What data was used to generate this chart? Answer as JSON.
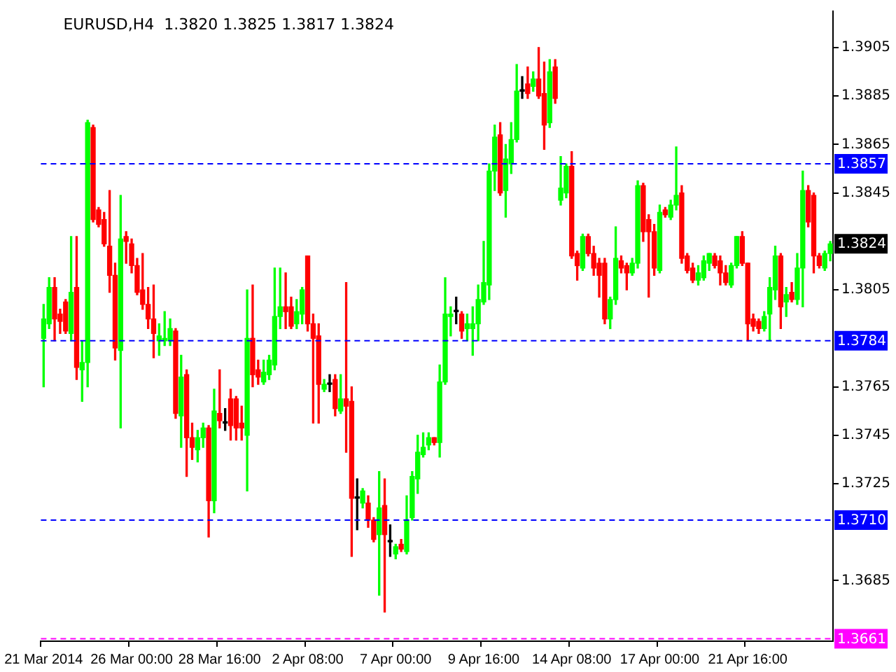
{
  "chart_data": {
    "type": "candlestick",
    "title": "EURUSD,H4  1.3820 1.3825 1.3817 1.3824",
    "categories": [
      "21 Mar 2014",
      null,
      null,
      null,
      null,
      null,
      null,
      null,
      null,
      null,
      null,
      null,
      null,
      null,
      null,
      null,
      "26 Mar 00:00",
      null,
      null,
      null,
      null,
      null,
      null,
      null,
      null,
      null,
      null,
      null,
      null,
      null,
      null,
      null,
      "28 Mar 16:00",
      null,
      null,
      null,
      null,
      null,
      null,
      null,
      null,
      null,
      null,
      null,
      null,
      null,
      null,
      null,
      "2 Apr 08:00",
      null,
      null,
      null,
      null,
      null,
      null,
      null,
      null,
      null,
      null,
      null,
      null,
      null,
      null,
      null,
      "7 Apr 00:00",
      null,
      null,
      null,
      null,
      null,
      null,
      null,
      null,
      null,
      null,
      null,
      null,
      null,
      null,
      null,
      "9 Apr 16:00",
      null,
      null,
      null,
      null,
      null,
      null,
      null,
      null,
      null,
      null,
      null,
      null,
      null,
      null,
      null,
      "14 Apr 08:00",
      null,
      null,
      null,
      null,
      null,
      null,
      null,
      null,
      null,
      null,
      null,
      null,
      null,
      null,
      null,
      "17 Apr 00:00",
      null,
      null,
      null,
      null,
      null,
      null,
      null,
      null,
      null,
      null,
      null,
      null,
      null,
      null,
      null,
      "21 Apr 16:00",
      null,
      null,
      null,
      null,
      null,
      null,
      null,
      null,
      null,
      null,
      null,
      null,
      null,
      null,
      null
    ],
    "ohlc": [
      [
        1.3785,
        1.3799,
        1.3765,
        1.3793
      ],
      [
        1.3791,
        1.381,
        1.3789,
        1.3806
      ],
      [
        1.3806,
        1.381,
        1.3784,
        1.3793
      ],
      [
        1.3795,
        1.3797,
        1.3787,
        1.3792
      ],
      [
        1.38,
        1.3801,
        1.3787,
        1.3788
      ],
      [
        1.3787,
        1.3827,
        1.3784,
        1.3804
      ],
      [
        1.3806,
        1.3827,
        1.3768,
        1.3773
      ],
      [
        1.3772,
        1.3784,
        1.3759,
        1.3775
      ],
      [
        1.3775,
        1.3875,
        1.3765,
        1.3874
      ],
      [
        1.3872,
        1.3873,
        1.3833,
        1.3834
      ],
      [
        1.3838,
        1.3839,
        1.3831,
        1.3832
      ],
      [
        1.3834,
        1.3837,
        1.3823,
        1.3824
      ],
      [
        1.3823,
        1.3846,
        1.3804,
        1.3811
      ],
      [
        1.3811,
        1.3816,
        1.3776,
        1.3781
      ],
      [
        1.378,
        1.3844,
        1.3748,
        1.3826
      ],
      [
        1.3827,
        1.3829,
        1.3816,
        1.3825
      ],
      [
        1.3824,
        1.3826,
        1.3812,
        1.3815
      ],
      [
        1.3815,
        1.3818,
        1.3803,
        1.3804
      ],
      [
        1.3805,
        1.382,
        1.3797,
        1.3799
      ],
      [
        1.3799,
        1.3806,
        1.3789,
        1.3793
      ],
      [
        1.3793,
        1.3807,
        1.3777,
        1.3787
      ],
      [
        1.3784,
        1.3791,
        1.3778,
        1.3786
      ],
      [
        1.3784,
        1.3796,
        1.3782,
        1.3785
      ],
      [
        1.3784,
        1.3793,
        1.3782,
        1.3789
      ],
      [
        1.3788,
        1.3789,
        1.3752,
        1.3754
      ],
      [
        1.3753,
        1.3778,
        1.374,
        1.3769
      ],
      [
        1.377,
        1.3772,
        1.3728,
        1.3744
      ],
      [
        1.3744,
        1.375,
        1.3735,
        1.374
      ],
      [
        1.3739,
        1.3747,
        1.3734,
        1.3744
      ],
      [
        1.3744,
        1.375,
        1.374,
        1.3748
      ],
      [
        1.3748,
        1.3749,
        1.3703,
        1.3718
      ],
      [
        1.3718,
        1.3764,
        1.3713,
        1.3755
      ],
      [
        1.3754,
        1.3772,
        1.3748,
        1.3751
      ],
      [
        1.375,
        1.3756,
        1.3747,
        1.375
      ],
      [
        1.376,
        1.3764,
        1.3743,
        1.3749
      ],
      [
        1.376,
        1.3761,
        1.3743,
        1.3748
      ],
      [
        1.375,
        1.3757,
        1.3743,
        1.3748
      ],
      [
        1.3745,
        1.3805,
        1.3722,
        1.3785
      ],
      [
        1.3785,
        1.3807,
        1.3765,
        1.377
      ],
      [
        1.3772,
        1.3776,
        1.3766,
        1.3769
      ],
      [
        1.3767,
        1.3776,
        1.3766,
        1.3771
      ],
      [
        1.377,
        1.3778,
        1.3768,
        1.3776
      ],
      [
        1.3774,
        1.3814,
        1.3772,
        1.3794
      ],
      [
        1.3794,
        1.3814,
        1.3789,
        1.3798
      ],
      [
        1.3798,
        1.3812,
        1.3789,
        1.3796
      ],
      [
        1.3798,
        1.3802,
        1.3789,
        1.379
      ],
      [
        1.3791,
        1.3801,
        1.3789,
        1.3796
      ],
      [
        1.3795,
        1.3806,
        1.3791,
        1.3805
      ],
      [
        1.3819,
        1.3819,
        1.3788,
        1.3791
      ],
      [
        1.3791,
        1.3795,
        1.375,
        1.3785
      ],
      [
        1.3786,
        1.3791,
        1.375,
        1.3766
      ],
      [
        1.3764,
        1.3768,
        1.3763,
        1.3766
      ],
      [
        1.3766,
        1.377,
        1.3763,
        1.3766
      ],
      [
        1.3768,
        1.377,
        1.3753,
        1.3756
      ],
      [
        1.3755,
        1.377,
        1.3754,
        1.376
      ],
      [
        1.376,
        1.3808,
        1.3738,
        1.3757
      ],
      [
        1.3759,
        1.3765,
        1.3695,
        1.3719
      ],
      [
        1.3719,
        1.3727,
        1.3706,
        1.3719
      ],
      [
        1.3717,
        1.3723,
        1.3715,
        1.3722
      ],
      [
        1.3717,
        1.372,
        1.3707,
        1.371
      ],
      [
        1.371,
        1.3711,
        1.3701,
        1.3702
      ],
      [
        1.3704,
        1.373,
        1.3679,
        1.3715
      ],
      [
        1.3716,
        1.3727,
        1.3672,
        1.3704
      ],
      [
        1.3701,
        1.3708,
        1.3695,
        1.3701
      ],
      [
        1.3696,
        1.37,
        1.3694,
        1.3699
      ],
      [
        1.37,
        1.3702,
        1.3697,
        1.3698
      ],
      [
        1.3697,
        1.372,
        1.3696,
        1.371
      ],
      [
        1.3711,
        1.373,
        1.371,
        1.3728
      ],
      [
        1.3727,
        1.3745,
        1.3721,
        1.3738
      ],
      [
        1.3737,
        1.3746,
        1.3736,
        1.374
      ],
      [
        1.3741,
        1.3746,
        1.3739,
        1.3744
      ],
      [
        1.3744,
        1.3744,
        1.3741,
        1.3742
      ],
      [
        1.3742,
        1.3774,
        1.3736,
        1.3767
      ],
      [
        1.3767,
        1.381,
        1.3766,
        1.3795
      ],
      [
        1.3794,
        1.3798,
        1.3786,
        1.3795
      ],
      [
        1.3796,
        1.3802,
        1.3791,
        1.3796
      ],
      [
        1.3795,
        1.3796,
        1.3785,
        1.3788
      ],
      [
        1.3789,
        1.3795,
        1.3784,
        1.3791
      ],
      [
        1.3789,
        1.3798,
        1.3778,
        1.3791
      ],
      [
        1.3791,
        1.3807,
        1.3784,
        1.3801
      ],
      [
        1.38,
        1.3825,
        1.3799,
        1.3808
      ],
      [
        1.3807,
        1.3857,
        1.3801,
        1.3854
      ],
      [
        1.3854,
        1.3873,
        1.3846,
        1.3868
      ],
      [
        1.3869,
        1.3874,
        1.3844,
        1.3845
      ],
      [
        1.3846,
        1.3865,
        1.3835,
        1.3859
      ],
      [
        1.3857,
        1.3874,
        1.3853,
        1.3867
      ],
      [
        1.3867,
        1.3898,
        1.3866,
        1.3887
      ],
      [
        1.3887,
        1.3893,
        1.3884,
        1.3887
      ],
      [
        1.389,
        1.3897,
        1.3884,
        1.3886
      ],
      [
        1.3889,
        1.3895,
        1.3887,
        1.3892
      ],
      [
        1.3892,
        1.3905,
        1.3884,
        1.3885
      ],
      [
        1.3886,
        1.3899,
        1.3863,
        1.3873
      ],
      [
        1.3874,
        1.39,
        1.3872,
        1.3895
      ],
      [
        1.3897,
        1.39,
        1.3882,
        1.3884
      ],
      [
        1.3842,
        1.386,
        1.384,
        1.3847
      ],
      [
        1.3845,
        1.3857,
        1.3843,
        1.3856
      ],
      [
        1.3856,
        1.3862,
        1.3818,
        1.3819
      ],
      [
        1.382,
        1.3821,
        1.3809,
        1.3815
      ],
      [
        1.3814,
        1.3828,
        1.3813,
        1.3827
      ],
      [
        1.3827,
        1.3828,
        1.3819,
        1.382
      ],
      [
        1.382,
        1.3823,
        1.3811,
        1.3814
      ],
      [
        1.3816,
        1.3818,
        1.3802,
        1.3811
      ],
      [
        1.3816,
        1.3818,
        1.3791,
        1.3793
      ],
      [
        1.3793,
        1.3802,
        1.3789,
        1.3801
      ],
      [
        1.3801,
        1.3831,
        1.3799,
        1.3818
      ],
      [
        1.3817,
        1.3819,
        1.3812,
        1.3814
      ],
      [
        1.3815,
        1.3816,
        1.3805,
        1.3812
      ],
      [
        1.3812,
        1.3818,
        1.3811,
        1.3816
      ],
      [
        1.3816,
        1.385,
        1.3814,
        1.3848
      ],
      [
        1.3848,
        1.3849,
        1.3825,
        1.3829
      ],
      [
        1.3834,
        1.3836,
        1.3802,
        1.3829
      ],
      [
        1.3829,
        1.3832,
        1.3811,
        1.3814
      ],
      [
        1.3813,
        1.384,
        1.3812,
        1.3837
      ],
      [
        1.3838,
        1.3839,
        1.3835,
        1.3836
      ],
      [
        1.3835,
        1.3842,
        1.3834,
        1.384
      ],
      [
        1.384,
        1.3864,
        1.3838,
        1.3844
      ],
      [
        1.3845,
        1.3848,
        1.3816,
        1.3818
      ],
      [
        1.3819,
        1.382,
        1.3812,
        1.3813
      ],
      [
        1.3814,
        1.3816,
        1.3808,
        1.3809
      ],
      [
        1.3809,
        1.3815,
        1.3807,
        1.3812
      ],
      [
        1.381,
        1.3819,
        1.3809,
        1.3817
      ],
      [
        1.3816,
        1.382,
        1.3813,
        1.382
      ],
      [
        1.3819,
        1.382,
        1.3814,
        1.3815
      ],
      [
        1.3817,
        1.3819,
        1.3807,
        1.3812
      ],
      [
        1.3812,
        1.3815,
        1.3807,
        1.3808
      ],
      [
        1.3807,
        1.3816,
        1.3806,
        1.3815
      ],
      [
        1.3815,
        1.3827,
        1.3814,
        1.3827
      ],
      [
        1.3827,
        1.3829,
        1.3815,
        1.3816
      ],
      [
        1.3816,
        1.3816,
        1.3784,
        1.3791
      ],
      [
        1.3793,
        1.3795,
        1.3788,
        1.379
      ],
      [
        1.3792,
        1.3793,
        1.3787,
        1.3789
      ],
      [
        1.3789,
        1.3796,
        1.3788,
        1.3794
      ],
      [
        1.3795,
        1.381,
        1.3784,
        1.3806
      ],
      [
        1.3805,
        1.3823,
        1.3801,
        1.3819
      ],
      [
        1.3819,
        1.382,
        1.3789,
        1.3798
      ],
      [
        1.38,
        1.3806,
        1.3794,
        1.3803
      ],
      [
        1.3804,
        1.3808,
        1.38,
        1.3801
      ],
      [
        1.3801,
        1.382,
        1.3799,
        1.3814
      ],
      [
        1.3814,
        1.3854,
        1.3798,
        1.3846
      ],
      [
        1.3846,
        1.3848,
        1.3831,
        1.3833
      ],
      [
        1.3844,
        1.3845,
        1.3812,
        1.3819
      ],
      [
        1.3819,
        1.382,
        1.3814,
        1.3815
      ],
      [
        1.3814,
        1.3821,
        1.3813,
        1.382
      ],
      [
        1.382,
        1.3825,
        1.3817,
        1.3824
      ]
    ],
    "colors": [
      "#00ff00",
      "#00ff00",
      "#ff0000",
      "#ff0000",
      "#ff0000",
      "#00ff00",
      "#ff0000",
      "#00ff00",
      "#00ff00",
      "#ff0000",
      "#ff0000",
      "#ff0000",
      "#ff0000",
      "#ff0000",
      "#00ff00",
      "#ff0000",
      "#ff0000",
      "#ff0000",
      "#ff0000",
      "#ff0000",
      "#ff0000",
      "#00ff00",
      "#00ff00",
      "#00ff00",
      "#ff0000",
      "#00ff00",
      "#ff0000",
      "#ff0000",
      "#00ff00",
      "#00ff00",
      "#ff0000",
      "#00ff00",
      "#ff0000",
      "#000000",
      "#ff0000",
      "#ff0000",
      "#ff0000",
      "#00ff00",
      "#ff0000",
      "#ff0000",
      "#00ff00",
      "#00ff00",
      "#00ff00",
      "#00ff00",
      "#ff0000",
      "#ff0000",
      "#00ff00",
      "#00ff00",
      "#ff0000",
      "#ff0000",
      "#ff0000",
      "#00ff00",
      "#000000",
      "#ff0000",
      "#00ff00",
      "#ff0000",
      "#ff0000",
      "#000000",
      "#00ff00",
      "#ff0000",
      "#ff0000",
      "#00ff00",
      "#ff0000",
      "#000000",
      "#00ff00",
      "#ff0000",
      "#00ff00",
      "#00ff00",
      "#00ff00",
      "#00ff00",
      "#00ff00",
      "#ff0000",
      "#00ff00",
      "#00ff00",
      "#00ff00",
      "#000000",
      "#ff0000",
      "#00ff00",
      "#00ff00",
      "#00ff00",
      "#00ff00",
      "#00ff00",
      "#00ff00",
      "#ff0000",
      "#00ff00",
      "#00ff00",
      "#00ff00",
      "#000000",
      "#ff0000",
      "#00ff00",
      "#ff0000",
      "#ff0000",
      "#00ff00",
      "#ff0000",
      "#00ff00",
      "#00ff00",
      "#ff0000",
      "#ff0000",
      "#00ff00",
      "#ff0000",
      "#ff0000",
      "#ff0000",
      "#ff0000",
      "#00ff00",
      "#00ff00",
      "#ff0000",
      "#ff0000",
      "#00ff00",
      "#00ff00",
      "#ff0000",
      "#ff0000",
      "#ff0000",
      "#00ff00",
      "#ff0000",
      "#00ff00",
      "#00ff00",
      "#ff0000",
      "#ff0000",
      "#ff0000",
      "#00ff00",
      "#00ff00",
      "#00ff00",
      "#ff0000",
      "#ff0000",
      "#ff0000",
      "#00ff00",
      "#00ff00",
      "#ff0000",
      "#ff0000",
      "#ff0000",
      "#ff0000",
      "#00ff00",
      "#00ff00",
      "#00ff00",
      "#ff0000",
      "#00ff00",
      "#ff0000",
      "#00ff00",
      "#00ff00",
      "#ff0000",
      "#ff0000",
      "#ff0000",
      "#00ff00",
      "#00ff00"
    ],
    "ylim": [
      1.366,
      1.392
    ],
    "yticks": [
      1.3905,
      1.3885,
      1.3865,
      1.3845,
      1.3805,
      1.3765,
      1.3745,
      1.3725,
      1.3685
    ],
    "ref_lines": [
      {
        "axis": "y",
        "value": 1.3857,
        "label": "1.3857",
        "color": "#0000ff",
        "line_style": "dashed"
      },
      {
        "axis": "y",
        "value": 1.3784,
        "label": "1.3784",
        "color": "#0000ff",
        "line_style": "dashed"
      },
      {
        "axis": "y",
        "value": 1.371,
        "label": "1.3710",
        "color": "#0000ff",
        "line_style": "dashed"
      },
      {
        "axis": "y",
        "value": 1.3661,
        "label": "1.3661",
        "color": "#ff00ff",
        "line_style": "dashed"
      }
    ],
    "annotations": [
      {
        "text": "1.3824",
        "y": 1.3824
      }
    ],
    "legend": false
  }
}
